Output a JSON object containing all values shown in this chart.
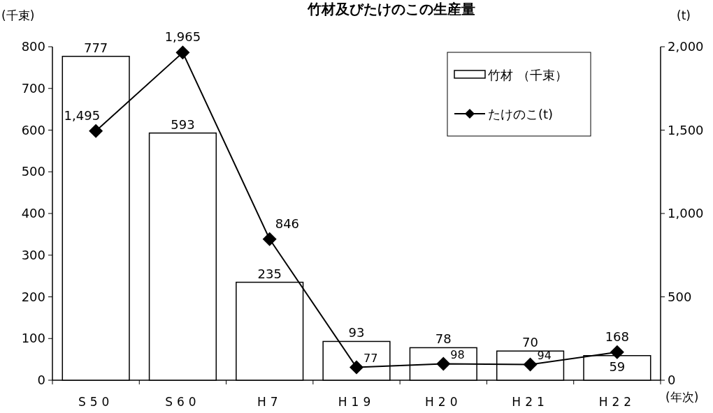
{
  "chart_data": {
    "type": "bar",
    "title": "竹材及びたけのこの生産量",
    "ylabel": "(千束)",
    "y2label": "(t)",
    "xlabel": "(年次)",
    "categories": [
      "S50",
      "S60",
      "H7",
      "H19",
      "H20",
      "H21",
      "H22"
    ],
    "series": [
      {
        "name": "竹材 （千束）",
        "type": "bar",
        "color": "#ffffff",
        "values": [
          777,
          593,
          235,
          93,
          78,
          70,
          59
        ]
      },
      {
        "name": "たけのこ(t)",
        "type": "line",
        "axis": "y2",
        "color": "#000000",
        "marker": "diamond",
        "values": [
          1495,
          1965,
          846,
          77,
          98,
          94,
          168
        ],
        "value_labels": [
          "1,495",
          "1,965",
          "846",
          "77",
          "98",
          "94",
          "168"
        ]
      }
    ],
    "ylim": [
      0,
      800
    ],
    "yticks": [
      0,
      100,
      200,
      300,
      400,
      500,
      600,
      700,
      800
    ],
    "y2lim": [
      0,
      2000
    ],
    "y2ticks": [
      0,
      500,
      {
        "value": 1000,
        "label": "1,000"
      },
      {
        "value": 1500,
        "label": "1,500"
      },
      {
        "value": 2000,
        "label": "2,000"
      }
    ],
    "data_labels": true,
    "legend": "top right",
    "grid": false
  }
}
